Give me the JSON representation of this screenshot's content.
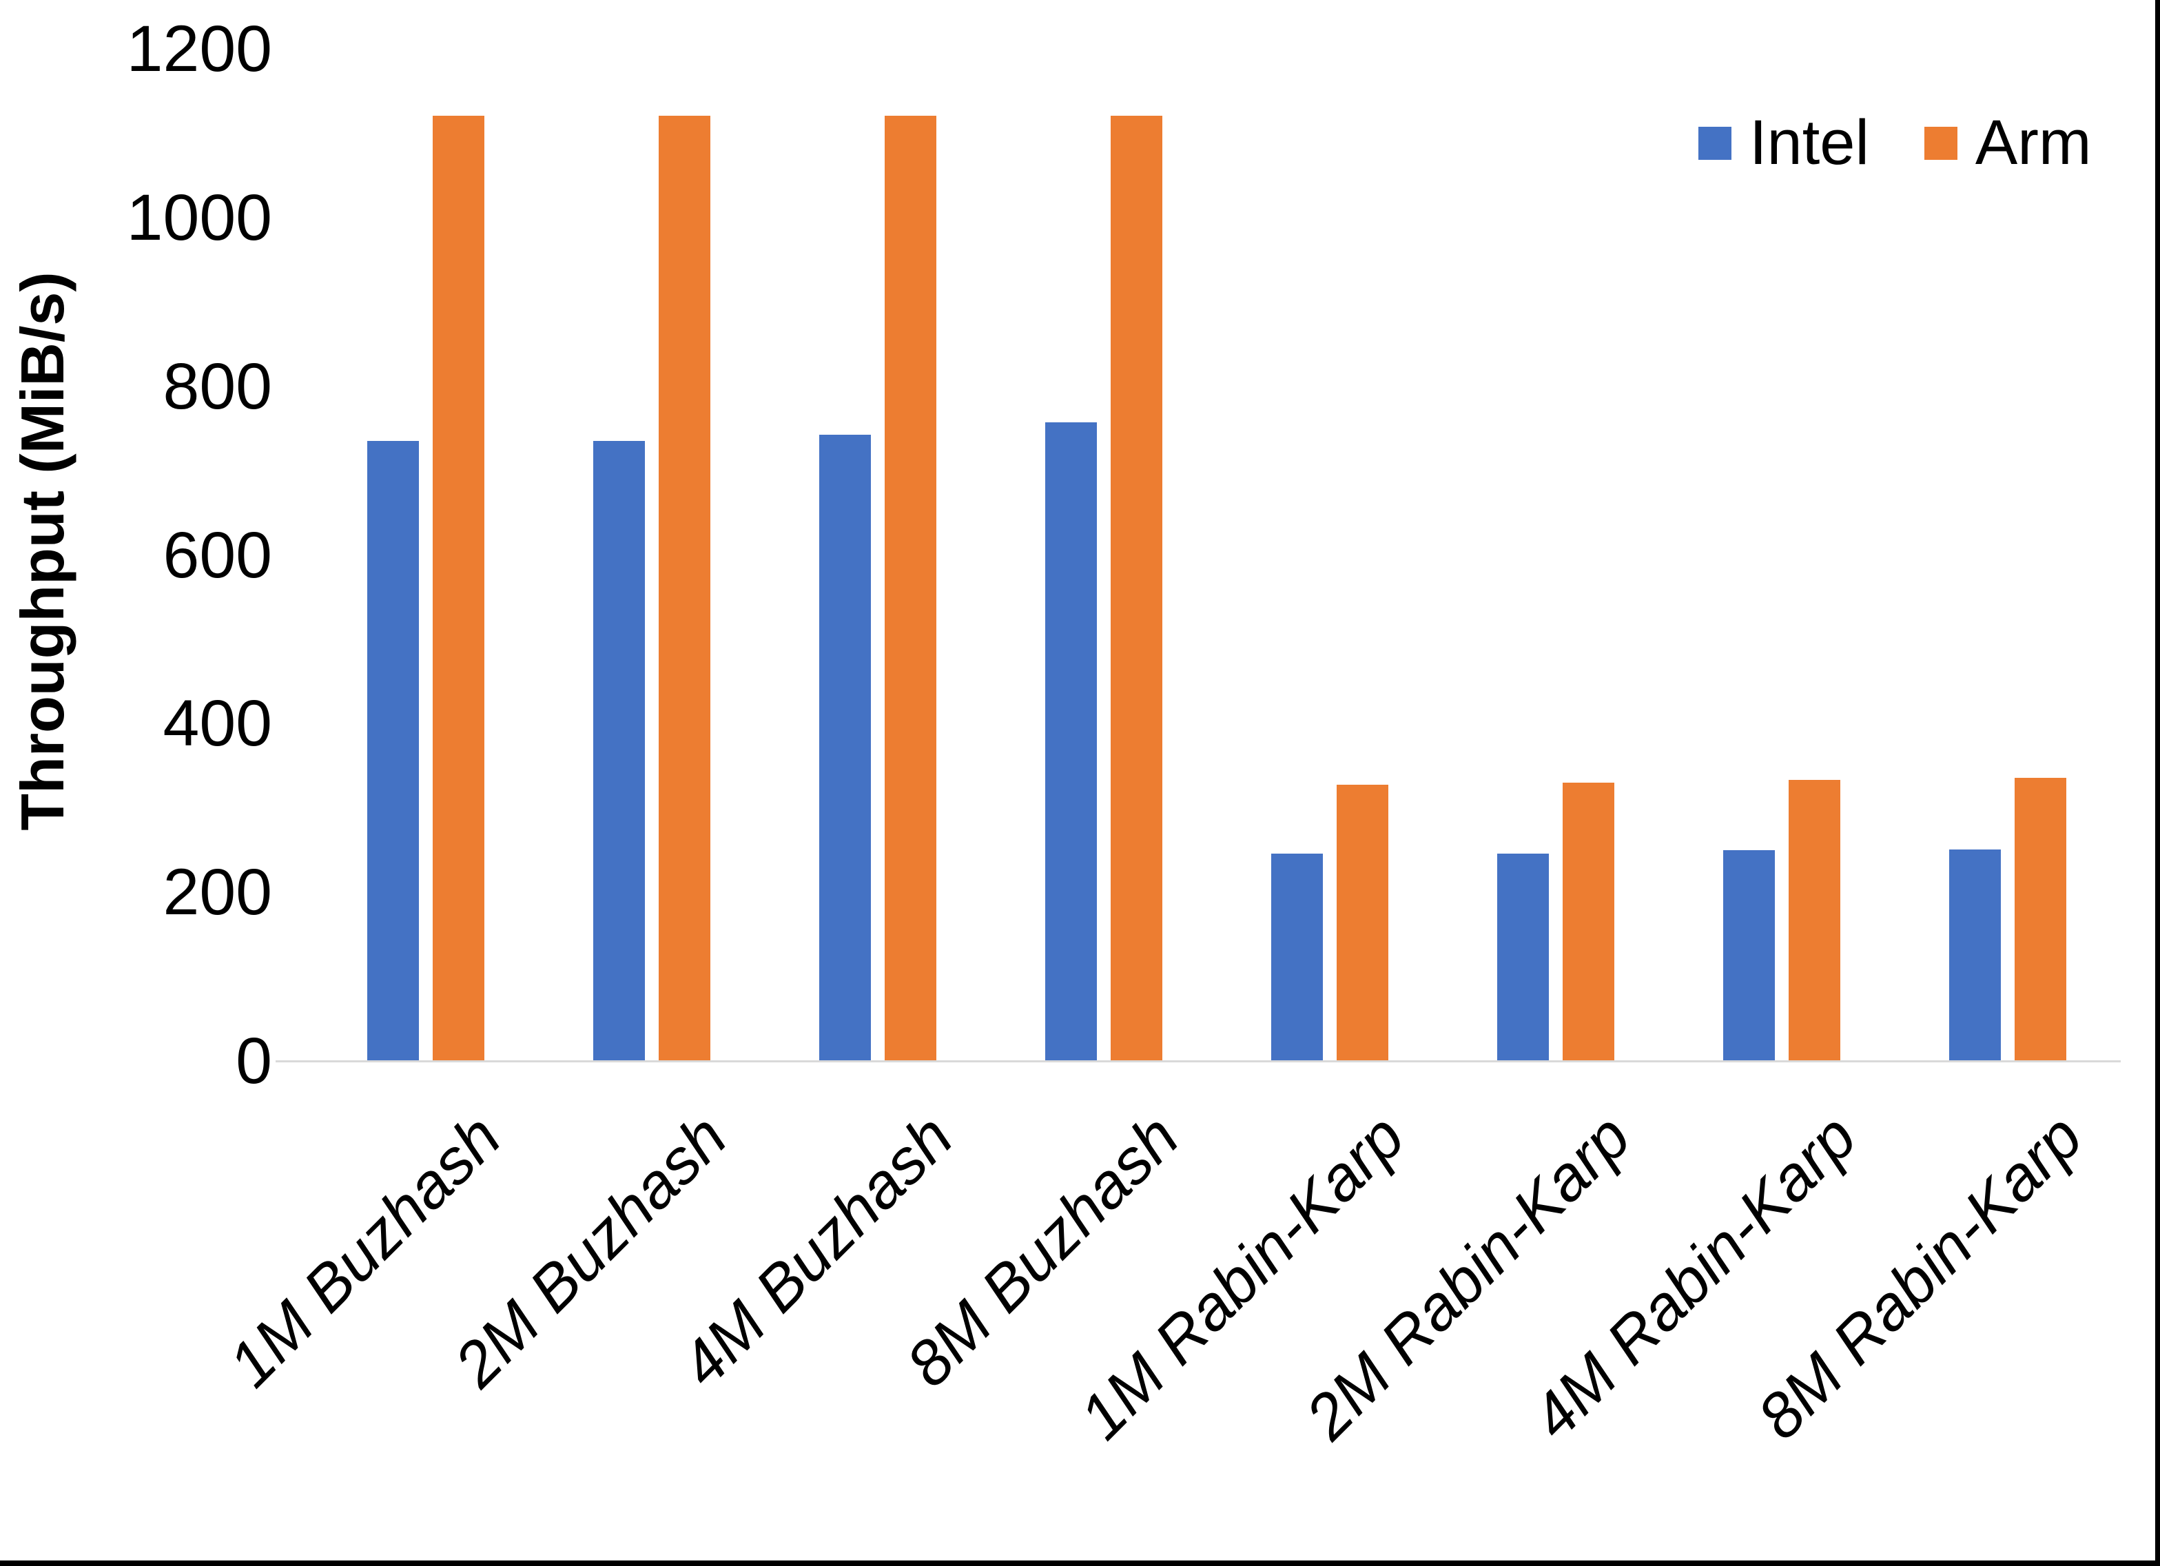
{
  "chart_data": {
    "type": "bar",
    "title": "",
    "xlabel": "",
    "ylabel": "Throughput (MiB/s)",
    "ylim": [
      0,
      1200
    ],
    "yticks": [
      0,
      200,
      400,
      600,
      800,
      1000,
      1200
    ],
    "grid": false,
    "legend_position": "top-right",
    "categories": [
      "1M Buzhash",
      "2M Buzhash",
      "4M Buzhash",
      "8M Buzhash",
      "1M Rabin-Karp",
      "2M Rabin-Karp",
      "4M Rabin-Karp",
      "8M Rabin-Karp"
    ],
    "series": [
      {
        "name": "Intel",
        "color": "#4472C4",
        "values": [
          735,
          735,
          743,
          757,
          246,
          246,
          250,
          251
        ]
      },
      {
        "name": "Arm",
        "color": "#ED7D31",
        "values": [
          1121,
          1121,
          1121,
          1121,
          328,
          330,
          333,
          336
        ]
      }
    ]
  },
  "colors": {
    "background": "#FFFFFF",
    "axis_line": "#D9D9D9",
    "text": "#000000",
    "frame_border": "#000000"
  }
}
